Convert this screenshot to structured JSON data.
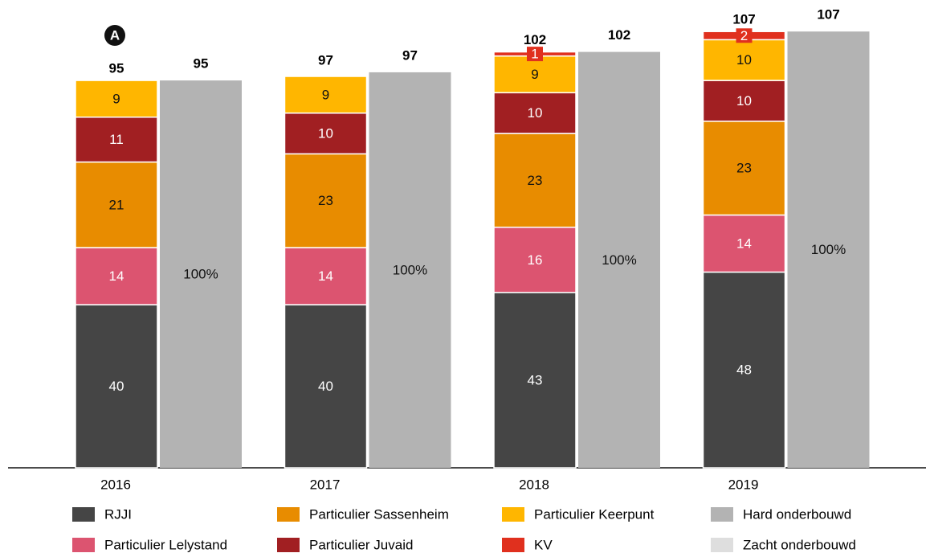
{
  "chart_data": {
    "type": "stacked_bar",
    "annotation": "A",
    "categories": [
      "2016",
      "2017",
      "2018",
      "2019"
    ],
    "series": [
      {
        "name": "RJJI",
        "color": "#454545",
        "values": [
          40,
          40,
          43,
          48
        ]
      },
      {
        "name": "Particulier Lelystand",
        "color": "#dc5470",
        "values": [
          14,
          14,
          16,
          14
        ]
      },
      {
        "name": "Particulier Sassenheim",
        "color": "#e88c00",
        "values": [
          21,
          23,
          23,
          23
        ]
      },
      {
        "name": "Particulier Juvaid",
        "color": "#a11f22",
        "values": [
          11,
          10,
          10,
          10
        ]
      },
      {
        "name": "Particulier Keerpunt",
        "color": "#ffb600",
        "values": [
          9,
          9,
          9,
          10
        ]
      },
      {
        "name": "KV",
        "color": "#e0301e",
        "values": [
          null,
          null,
          1,
          2
        ]
      }
    ],
    "totals": [
      95,
      97,
      102,
      107
    ],
    "reference_series": [
      {
        "name": "Hard onderbouwd",
        "color": "#b3b3b3",
        "values": [
          95,
          97,
          102,
          107
        ],
        "value_labels": [
          "100%",
          "100%",
          "100%",
          "100%"
        ]
      },
      {
        "name": "Zacht onderbouwd",
        "color": "#dedede",
        "values": [
          null,
          null,
          null,
          null
        ]
      }
    ],
    "ylim": [
      0,
      110
    ]
  }
}
